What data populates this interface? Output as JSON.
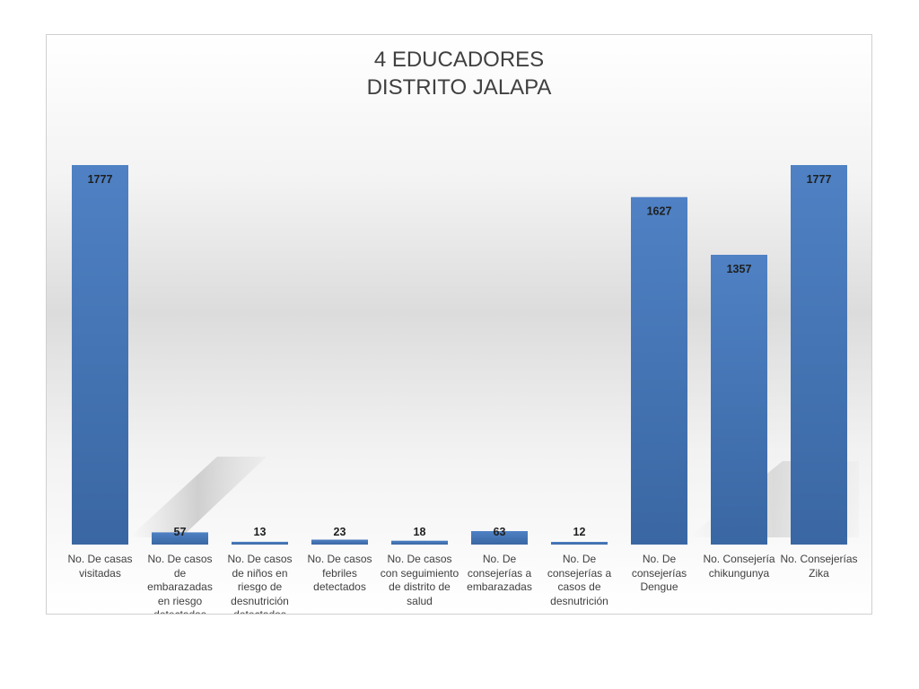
{
  "chart_data": {
    "type": "bar",
    "title_lines": [
      "4 EDUCADORES",
      "DISTRITO JALAPA"
    ],
    "categories": [
      "No. De casas visitadas",
      "No. De casos de embarazadas en riesgo detectadas",
      "No. De casos de niños en riesgo de desnutrición detectados",
      "No. De casos febriles detectados",
      "No. De casos con seguimiento de distrito de salud",
      "No. De consejerías a embarazadas",
      "No. De consejerías a casos de desnutrición",
      "No. De consejerías Dengue",
      "No. Consejería chikungunya",
      "No. Consejerías Zika"
    ],
    "values": [
      1777,
      57,
      13,
      23,
      18,
      63,
      12,
      1627,
      1357,
      1777
    ],
    "data_labels": [
      "1777",
      "57",
      "13",
      "23",
      "18",
      "63",
      "12",
      "1627",
      "1357",
      "1777"
    ],
    "ylim": [
      0,
      1777
    ],
    "grid": false,
    "legend": "none",
    "bar_color_top": "#4f81c4",
    "bar_color_bottom": "#3a67a3"
  }
}
